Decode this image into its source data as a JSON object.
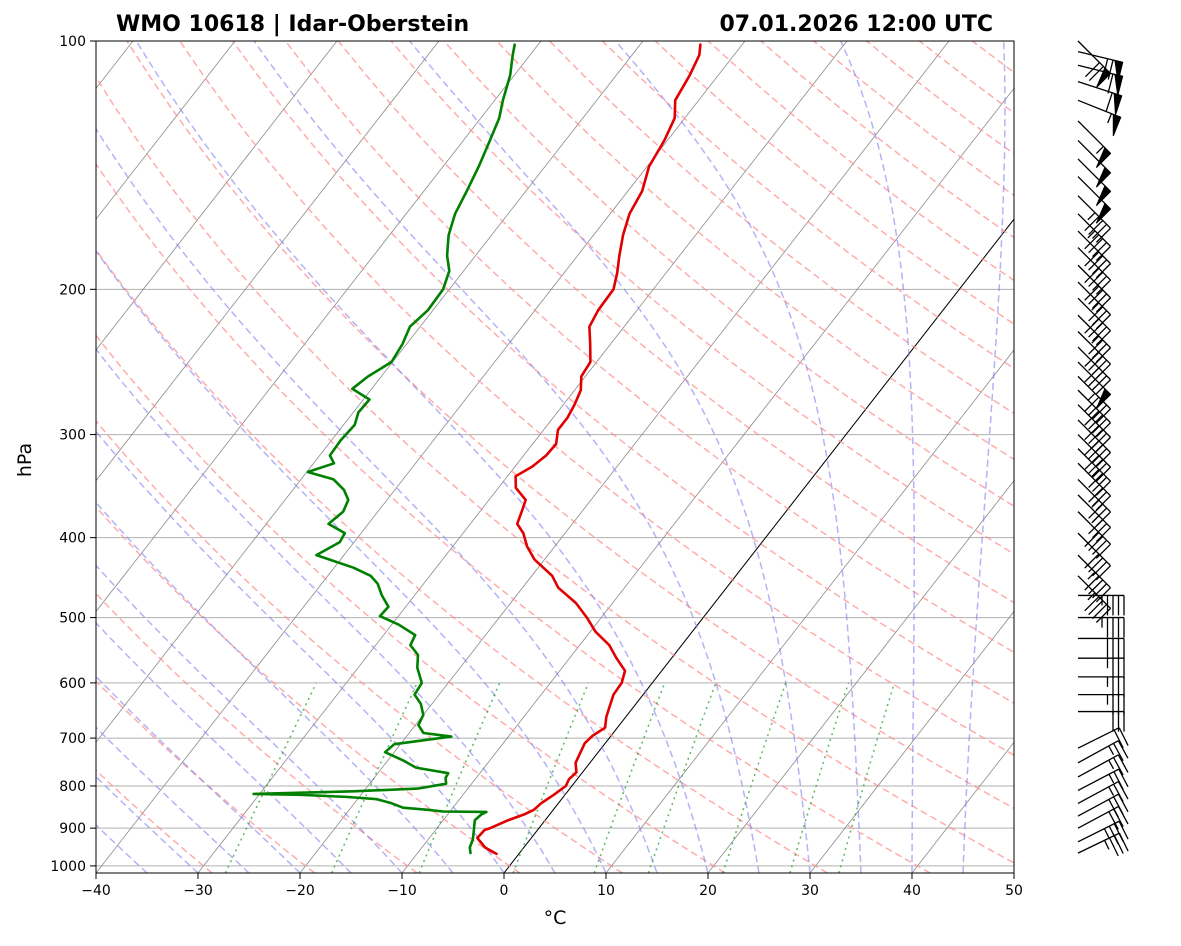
{
  "header": {
    "station": "WMO 10618 | Idar-Oberstein",
    "datetime": "07.01.2026 12:00 UTC"
  },
  "chart_data": {
    "type": "skewt",
    "xlabel": "°C",
    "ylabel": "hPa",
    "xlim": [
      -40,
      50
    ],
    "ylim_hpa": [
      1020,
      100
    ],
    "log_pressure_axis": true,
    "x_ticks": [
      "−40",
      "−30",
      "−20",
      "−10",
      "0",
      "10",
      "20",
      "30",
      "40",
      "50"
    ],
    "y_ticks": [
      "100",
      "200",
      "300",
      "400",
      "500",
      "600",
      "700",
      "800",
      "900",
      "1000"
    ],
    "grid": true,
    "background_lines": {
      "isotherms": "gray solid",
      "dry_adiabats": "red dashed",
      "moist_adiabats": "blue dashed",
      "mixing_ratio": "green dotted",
      "zero_isotherm": "black solid"
    },
    "series": [
      {
        "color": "#e00000",
        "points": [
          [
            967,
            -2.2
          ],
          [
            950,
            -3.8
          ],
          [
            925,
            -5.3
          ],
          [
            905,
            -5.2
          ],
          [
            900,
            -4.8
          ],
          [
            880,
            -3.6
          ],
          [
            866,
            -2.5
          ],
          [
            855,
            -1.9
          ],
          [
            840,
            -1.7
          ],
          [
            820,
            -1.1
          ],
          [
            800,
            -0.6
          ],
          [
            785,
            -0.8
          ],
          [
            770,
            -0.6
          ],
          [
            750,
            -1.4
          ],
          [
            730,
            -1.7
          ],
          [
            710,
            -2.0
          ],
          [
            695,
            -1.8
          ],
          [
            680,
            -1.2
          ],
          [
            660,
            -1.9
          ],
          [
            640,
            -2.4
          ],
          [
            620,
            -2.9
          ],
          [
            600,
            -3.0
          ],
          [
            580,
            -3.6
          ],
          [
            560,
            -5.4
          ],
          [
            540,
            -7.1
          ],
          [
            520,
            -9.5
          ],
          [
            500,
            -11.4
          ],
          [
            480,
            -13.6
          ],
          [
            460,
            -16.5
          ],
          [
            445,
            -18.0
          ],
          [
            425,
            -21.0
          ],
          [
            410,
            -22.7
          ],
          [
            395,
            -24.1
          ],
          [
            385,
            -25.4
          ],
          [
            372,
            -25.9
          ],
          [
            360,
            -26.4
          ],
          [
            348,
            -28.3
          ],
          [
            337,
            -29.2
          ],
          [
            328,
            -28.3
          ],
          [
            318,
            -27.8
          ],
          [
            308,
            -27.7
          ],
          [
            296,
            -28.6
          ],
          [
            286,
            -28.6
          ],
          [
            276,
            -28.9
          ],
          [
            265,
            -29.4
          ],
          [
            255,
            -30.4
          ],
          [
            245,
            -30.6
          ],
          [
            233,
            -32.0
          ],
          [
            222,
            -33.4
          ],
          [
            212,
            -33.8
          ],
          [
            200,
            -33.9
          ],
          [
            191,
            -34.8
          ],
          [
            182,
            -35.9
          ],
          [
            172,
            -37.1
          ],
          [
            162,
            -38.1
          ],
          [
            152,
            -38.6
          ],
          [
            142,
            -39.8
          ],
          [
            132,
            -40.3
          ],
          [
            124,
            -41.0
          ],
          [
            118,
            -42.3
          ],
          [
            110,
            -42.8
          ],
          [
            104,
            -43.4
          ],
          [
            101,
            -44.1
          ]
        ]
      },
      {
        "color": "#008000",
        "points": [
          [
            965,
            -4.8
          ],
          [
            950,
            -5.3
          ],
          [
            930,
            -5.6
          ],
          [
            910,
            -6.1
          ],
          [
            895,
            -6.5
          ],
          [
            880,
            -6.9
          ],
          [
            866,
            -6.7
          ],
          [
            860,
            -6.4
          ],
          [
            859,
            -10.7
          ],
          [
            855,
            -12.3
          ],
          [
            850,
            -14.9
          ],
          [
            840,
            -16.3
          ],
          [
            830,
            -18.1
          ],
          [
            825,
            -21.1
          ],
          [
            820,
            -25.9
          ],
          [
            818,
            -30.6
          ],
          [
            812,
            -21.0
          ],
          [
            806,
            -14.9
          ],
          [
            795,
            -12.5
          ],
          [
            782,
            -13.0
          ],
          [
            772,
            -13.1
          ],
          [
            760,
            -16.7
          ],
          [
            745,
            -18.5
          ],
          [
            728,
            -20.9
          ],
          [
            712,
            -20.6
          ],
          [
            697,
            -15.6
          ],
          [
            690,
            -18.6
          ],
          [
            675,
            -19.7
          ],
          [
            656,
            -20.0
          ],
          [
            636,
            -21.1
          ],
          [
            620,
            -22.4
          ],
          [
            600,
            -22.6
          ],
          [
            575,
            -24.2
          ],
          [
            555,
            -25.1
          ],
          [
            540,
            -26.6
          ],
          [
            525,
            -26.9
          ],
          [
            510,
            -29.3
          ],
          [
            498,
            -31.8
          ],
          [
            485,
            -31.7
          ],
          [
            470,
            -33.2
          ],
          [
            455,
            -34.5
          ],
          [
            445,
            -35.8
          ],
          [
            435,
            -38.1
          ],
          [
            420,
            -42.7
          ],
          [
            405,
            -41.4
          ],
          [
            395,
            -41.6
          ],
          [
            385,
            -43.9
          ],
          [
            372,
            -43.4
          ],
          [
            360,
            -43.8
          ],
          [
            350,
            -45.0
          ],
          [
            340,
            -46.8
          ],
          [
            333,
            -49.9
          ],
          [
            325,
            -48.0
          ],
          [
            318,
            -49.0
          ],
          [
            305,
            -49.1
          ],
          [
            292,
            -48.9
          ],
          [
            282,
            -49.5
          ],
          [
            272,
            -49.4
          ],
          [
            264,
            -51.9
          ],
          [
            255,
            -51.3
          ],
          [
            245,
            -50.1
          ],
          [
            233,
            -50.4
          ],
          [
            222,
            -51.0
          ],
          [
            212,
            -50.5
          ],
          [
            200,
            -50.6
          ],
          [
            190,
            -51.4
          ],
          [
            182,
            -52.8
          ],
          [
            172,
            -54.2
          ],
          [
            162,
            -55.2
          ],
          [
            152,
            -55.8
          ],
          [
            142,
            -56.5
          ],
          [
            132,
            -57.4
          ],
          [
            124,
            -58.2
          ],
          [
            118,
            -59.2
          ],
          [
            110,
            -60.4
          ],
          [
            104,
            -61.7
          ],
          [
            101,
            -62.3
          ]
        ]
      }
    ],
    "wind_barbs": [
      {
        "hpa": 965,
        "u": -31,
        "v": -15
      },
      {
        "hpa": 935,
        "u": -30,
        "v": -15
      },
      {
        "hpa": 900,
        "u": -28,
        "v": -15
      },
      {
        "hpa": 870,
        "u": -26,
        "v": -14
      },
      {
        "hpa": 840,
        "u": -24,
        "v": -13
      },
      {
        "hpa": 810,
        "u": -23,
        "v": -12
      },
      {
        "hpa": 780,
        "u": -22,
        "v": -12
      },
      {
        "hpa": 750,
        "u": -20,
        "v": -11
      },
      {
        "hpa": 720,
        "u": -20,
        "v": -10
      },
      {
        "hpa": 650,
        "u": -30,
        "v": 0
      },
      {
        "hpa": 620,
        "u": -33,
        "v": 0
      },
      {
        "hpa": 590,
        "u": -35,
        "v": 0
      },
      {
        "hpa": 560,
        "u": -37,
        "v": 0
      },
      {
        "hpa": 530,
        "u": -40,
        "v": 0
      },
      {
        "hpa": 500,
        "u": -43,
        "v": 0
      },
      {
        "hpa": 470,
        "u": -45,
        "v": 0
      },
      {
        "hpa": 445,
        "u": -33,
        "v": 33
      },
      {
        "hpa": 420,
        "u": -32,
        "v": 32
      },
      {
        "hpa": 395,
        "u": -30,
        "v": 30
      },
      {
        "hpa": 372,
        "u": -28,
        "v": 28
      },
      {
        "hpa": 355,
        "u": -25,
        "v": 25
      },
      {
        "hpa": 340,
        "u": -25,
        "v": 25
      },
      {
        "hpa": 325,
        "u": -20,
        "v": 20
      },
      {
        "hpa": 312,
        "u": -25,
        "v": 25
      },
      {
        "hpa": 300,
        "u": -28,
        "v": 28
      },
      {
        "hpa": 288,
        "u": -30,
        "v": 30
      },
      {
        "hpa": 276,
        "u": -28,
        "v": 28
      },
      {
        "hpa": 265,
        "u": -30,
        "v": 30
      },
      {
        "hpa": 255,
        "u": -33,
        "v": 33
      },
      {
        "hpa": 245,
        "u": -37,
        "v": 37
      },
      {
        "hpa": 235,
        "u": -30,
        "v": 30
      },
      {
        "hpa": 225,
        "u": -28,
        "v": 28
      },
      {
        "hpa": 215,
        "u": -25,
        "v": 25
      },
      {
        "hpa": 205,
        "u": -27,
        "v": 27
      },
      {
        "hpa": 196,
        "u": -25,
        "v": 25
      },
      {
        "hpa": 187,
        "u": -27,
        "v": 27
      },
      {
        "hpa": 178,
        "u": -28,
        "v": 28
      },
      {
        "hpa": 170,
        "u": -30,
        "v": 30
      },
      {
        "hpa": 162,
        "u": -32,
        "v": 32
      },
      {
        "hpa": 154,
        "u": -33,
        "v": 33
      },
      {
        "hpa": 146,
        "u": -34,
        "v": 34
      },
      {
        "hpa": 139,
        "u": -35,
        "v": 35
      },
      {
        "hpa": 132,
        "u": -36,
        "v": 36
      },
      {
        "hpa": 125,
        "u": -38,
        "v": 38
      },
      {
        "hpa": 118,
        "u": -50,
        "v": 20
      },
      {
        "hpa": 112,
        "u": -55,
        "v": 18
      },
      {
        "hpa": 107,
        "u": -60,
        "v": 15
      },
      {
        "hpa": 103,
        "u": -62,
        "v": 15
      },
      {
        "hpa": 100,
        "u": -50,
        "v": 50
      }
    ]
  }
}
